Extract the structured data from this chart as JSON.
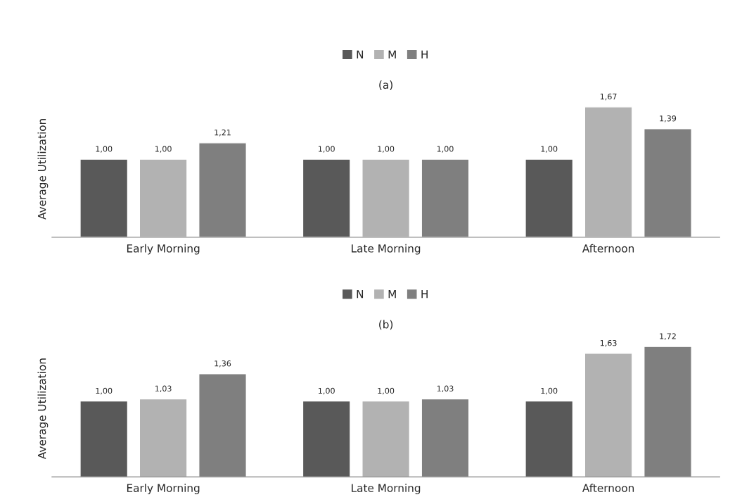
{
  "chart_data": [
    {
      "type": "bar",
      "title": "(a)",
      "ylabel": "Average Utilization",
      "categories": [
        "Early Morning",
        "Late Morning",
        "Afternoon"
      ],
      "tick_labels": "x",
      "legend": "top",
      "grid": false,
      "series": [
        {
          "name": "N",
          "color": "#595959",
          "values": [
            1.0,
            1.0,
            1.0
          ],
          "value_labels": [
            "1,00",
            "1,00",
            "1,00"
          ]
        },
        {
          "name": "M",
          "color": "#b2b2b2",
          "values": [
            1.0,
            1.0,
            1.67
          ],
          "value_labels": [
            "1,00",
            "1,00",
            "1,67"
          ]
        },
        {
          "name": "H",
          "color": "#7f7f7f",
          "values": [
            1.21,
            1.0,
            1.39
          ],
          "value_labels": [
            "1,21",
            "1,00",
            "1,39"
          ]
        }
      ]
    },
    {
      "type": "bar",
      "title": "(b)",
      "ylabel": "Average Utilization",
      "categories": [
        "Early Morning",
        "Late Morning",
        "Afternoon"
      ],
      "tick_labels": "x",
      "legend": "top",
      "grid": false,
      "series": [
        {
          "name": "N",
          "color": "#595959",
          "values": [
            1.0,
            1.0,
            1.0
          ],
          "value_labels": [
            "1,00",
            "1,00",
            "1,00"
          ]
        },
        {
          "name": "M",
          "color": "#b2b2b2",
          "values": [
            1.03,
            1.0,
            1.63
          ],
          "value_labels": [
            "1,03",
            "1,00",
            "1,63"
          ]
        },
        {
          "name": "H",
          "color": "#7f7f7f",
          "values": [
            1.36,
            1.03,
            1.72
          ],
          "value_labels": [
            "1,36",
            "1,03",
            "1,72"
          ]
        }
      ]
    }
  ]
}
